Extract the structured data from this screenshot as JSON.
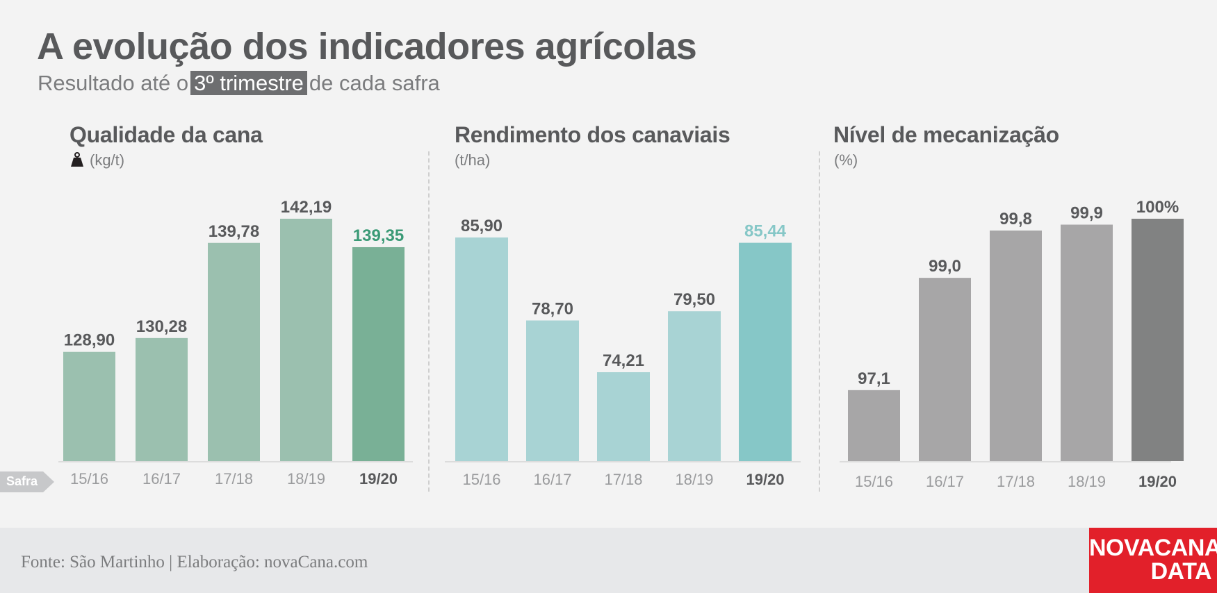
{
  "header": {
    "title": "A evolução dos indicadores agrícolas",
    "subtitle_before": "Resultado até o",
    "subtitle_highlight": "3º trimestre",
    "subtitle_after": "de cada safra"
  },
  "x_axis_tag": "Safra",
  "footer": {
    "source": "Fonte: São Martinho | Elaboração: novaCana.com",
    "logo_line1": "NOVACANA",
    "logo_line2": "DATA"
  },
  "colors": {
    "qualidade_bar": "#9bc0af",
    "qualidade_highlight": "#79b096",
    "qualidade_highlight_label": "#3a9a76",
    "rendimento_bar": "#a8d3d4",
    "rendimento_highlight": "#86c7c7",
    "rendimento_highlight_label": "#86c7c7",
    "mecanizacao_bar": "#a7a6a7",
    "mecanizacao_highlight": "#818282",
    "mecanizacao_highlight_label": "#58595b",
    "label_text": "#58595b",
    "tick_text": "#9a9b9d",
    "tick_highlight": "#58595b",
    "logo": "#e2202a"
  },
  "chart_data": [
    {
      "type": "bar",
      "title": "Qualidade da cana",
      "ylabel": "(kg/t)",
      "icon": "weight-icon",
      "categories": [
        "15/16",
        "16/17",
        "17/18",
        "18/19",
        "19/20"
      ],
      "values": [
        128.9,
        130.28,
        139.78,
        142.19,
        139.35
      ],
      "labels": [
        "128,90",
        "130,28",
        "139,78",
        "142,19",
        "139,35"
      ],
      "highlight_index": 4,
      "ylim": [
        118,
        142.19
      ],
      "grid": false
    },
    {
      "type": "bar",
      "title": "Rendimento dos canaviais",
      "ylabel": "(t/ha)",
      "categories": [
        "15/16",
        "16/17",
        "17/18",
        "18/19",
        "19/20"
      ],
      "values": [
        85.9,
        78.7,
        74.21,
        79.5,
        85.44
      ],
      "labels": [
        "85,90",
        "78,70",
        "74,21",
        "79,50",
        "85,44"
      ],
      "highlight_index": 4,
      "ylim": [
        66.5,
        85.9
      ],
      "grid": false
    },
    {
      "type": "bar",
      "title": "Nível de mecanização",
      "ylabel": "(%)",
      "categories": [
        "15/16",
        "16/17",
        "17/18",
        "18/19",
        "19/20"
      ],
      "values": [
        97.1,
        99.0,
        99.8,
        99.9,
        100
      ],
      "labels": [
        "97,1",
        "99,0",
        "99,8",
        "99,9",
        "100%"
      ],
      "highlight_index": 4,
      "ylim": [
        95.9,
        100
      ],
      "grid": false
    }
  ]
}
